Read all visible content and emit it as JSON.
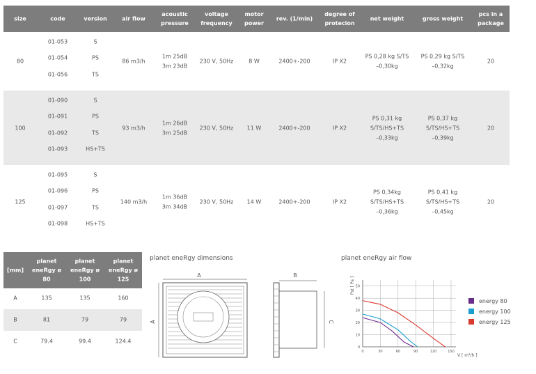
{
  "table": {
    "headers": [
      "size",
      "code",
      "version",
      "air flow",
      "acoustic pressure",
      "voltage frequency",
      "motor power",
      "rev. (1/min)",
      "degree of protecion",
      "net weight",
      "gross weight",
      "pcs in a package"
    ],
    "rows": [
      {
        "size": "80",
        "codes": [
          "01-053",
          "01-054",
          "01-056"
        ],
        "versions": [
          "S",
          "PS",
          "TS"
        ],
        "air_flow": "86 m3/h",
        "acoustic": [
          "1m 25dB",
          "3m 23dB"
        ],
        "voltage": "230 V, 50Hz",
        "motor": "8 W",
        "rev": "2400+-200",
        "degree": "IP X2",
        "net_weight": [
          "PS 0,28 kg S/TS",
          "–0,30kg"
        ],
        "gross_weight": [
          "PS 0,29 kg S/TS",
          "–0,32kg"
        ],
        "pcs": "20"
      },
      {
        "size": "100",
        "codes": [
          "01-090",
          "01-091",
          "01-092",
          "01-093"
        ],
        "versions": [
          "S",
          "PS",
          "TS",
          "HS+TS"
        ],
        "air_flow": "93 m3/h",
        "acoustic": [
          "1m 26dB",
          "3m 25dB"
        ],
        "voltage": "230 V, 50Hz",
        "motor": "11 W",
        "rev": "2400+-200",
        "degree": "IP X2",
        "net_weight": [
          "PS 0,31 kg",
          "S/TS/HS+TS",
          "–0,33kg"
        ],
        "gross_weight": [
          "PS 0,37 kg",
          "S/TS/HS+TS",
          "–0,39kg"
        ],
        "pcs": "20"
      },
      {
        "size": "125",
        "codes": [
          "01-095",
          "01-096",
          "01-097",
          "01-098"
        ],
        "versions": [
          "S",
          "PS",
          "TS",
          "HS+TS"
        ],
        "air_flow": "140 m3/h",
        "acoustic": [
          "1m 36dB",
          "3m 34dB"
        ],
        "voltage": "230 V, 50Hz",
        "motor": "14 W",
        "rev": "2400+-200",
        "degree": "IP X2",
        "net_weight": [
          "PS 0,34kg",
          "S/TS/HS+TS",
          "–0,36kg"
        ],
        "gross_weight": [
          "PS 0,41 kg",
          "S/TS/HS+TS",
          "–0,45kg"
        ],
        "pcs": "20"
      }
    ]
  },
  "dimensions": {
    "headers": [
      "[mm]",
      "planet eneRgy ø 80",
      "planet eneRgy ø 100",
      "planet eneRgy ø 125"
    ],
    "rows": [
      [
        "A",
        "135",
        "135",
        "160"
      ],
      [
        "B",
        "81",
        "79",
        "79"
      ],
      [
        "C",
        "79.4",
        "99.4",
        "124.4"
      ]
    ]
  },
  "diagram": {
    "title": "planet eneRgy dimensions",
    "labels": [
      "A",
      "A",
      "B",
      "C"
    ]
  },
  "chart_data": {
    "type": "line",
    "title": "planet eneRgy air flow",
    "x_label": "V [ m³/h ]",
    "y_label": "Pst [ Pa ]",
    "xlim": [
      0,
      150
    ],
    "ylim": [
      0,
      55
    ],
    "xticks": [
      0,
      30,
      60,
      90,
      120,
      150
    ],
    "yticks": [
      0,
      10,
      20,
      30,
      40,
      50
    ],
    "grid": true,
    "legend": "right",
    "series": [
      {
        "name": "energy 80",
        "color": "#6a2c8a",
        "x": [
          0,
          30,
          50,
          70,
          86
        ],
        "values": [
          24,
          20,
          13,
          4,
          0
        ]
      },
      {
        "name": "energy 100",
        "color": "#1a9fd0",
        "x": [
          0,
          30,
          60,
          80,
          93
        ],
        "values": [
          27,
          23,
          14,
          5,
          0
        ]
      },
      {
        "name": "energy 125",
        "color": "#d83a2e",
        "x": [
          0,
          30,
          60,
          90,
          120,
          140
        ],
        "values": [
          38,
          35,
          28,
          18,
          7,
          0
        ]
      }
    ]
  }
}
